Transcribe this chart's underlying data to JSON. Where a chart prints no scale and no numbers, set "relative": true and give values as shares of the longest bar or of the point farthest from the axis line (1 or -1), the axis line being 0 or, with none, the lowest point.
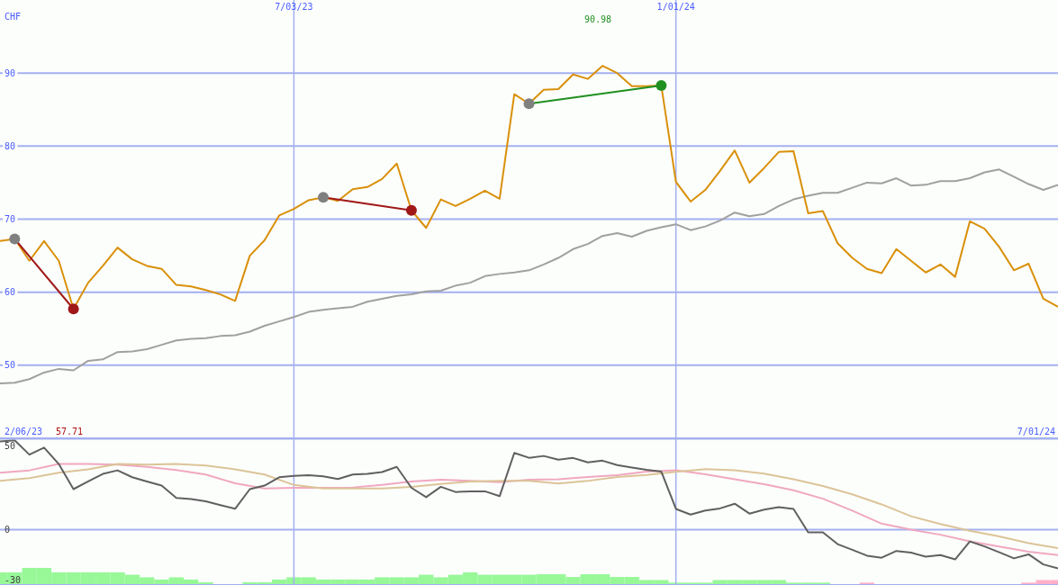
{
  "chart_data": [
    {
      "type": "line",
      "ylabel": "CHF",
      "xlim": [
        "2023-02-13",
        "2024-07-01"
      ],
      "ylim": [
        40,
        100
      ],
      "yticks": [
        50,
        60,
        70,
        80,
        90
      ],
      "xticks": [
        {
          "value": "2023-07-03",
          "label": "7/03/23"
        },
        {
          "value": "2024-01-01",
          "label": "1/01/24"
        }
      ],
      "grid": true,
      "x": [
        "2023-02-13",
        "2023-02-20",
        "2023-02-27",
        "2023-03-06",
        "2023-03-13",
        "2023-03-20",
        "2023-03-27",
        "2023-04-03",
        "2023-04-10",
        "2023-04-17",
        "2023-04-24",
        "2023-05-01",
        "2023-05-08",
        "2023-05-15",
        "2023-05-22",
        "2023-05-29",
        "2023-06-05",
        "2023-06-12",
        "2023-06-19",
        "2023-06-26",
        "2023-07-03",
        "2023-07-10",
        "2023-07-17",
        "2023-07-24",
        "2023-07-31",
        "2023-08-07",
        "2023-08-14",
        "2023-08-21",
        "2023-08-28",
        "2023-09-04",
        "2023-09-11",
        "2023-09-18",
        "2023-09-25",
        "2023-10-02",
        "2023-10-09",
        "2023-10-16",
        "2023-10-23",
        "2023-10-30",
        "2023-11-06",
        "2023-11-13",
        "2023-11-20",
        "2023-11-27",
        "2023-12-04",
        "2023-12-11",
        "2023-12-18",
        "2023-12-25",
        "2024-01-01",
        "2024-01-08",
        "2024-01-15",
        "2024-01-22",
        "2024-01-29",
        "2024-02-05",
        "2024-02-12",
        "2024-02-19",
        "2024-02-26",
        "2024-03-04",
        "2024-03-11",
        "2024-03-18",
        "2024-03-25",
        "2024-04-01",
        "2024-04-08",
        "2024-04-15",
        "2024-04-22",
        "2024-04-29",
        "2024-05-06",
        "2024-05-13",
        "2024-05-20",
        "2024-05-27",
        "2024-06-03",
        "2024-06-10",
        "2024-06-17",
        "2024-06-24",
        "2024-07-01"
      ],
      "series": [
        {
          "color": "#a0a0a0",
          "values": [
            47.5,
            47.6,
            48.1,
            49.0,
            49.5,
            49.3,
            50.6,
            50.8,
            51.8,
            51.9,
            52.2,
            52.8,
            53.4,
            53.6,
            53.7,
            54.0,
            54.1,
            54.6,
            55.4,
            56.0,
            56.6,
            57.3,
            57.6,
            57.8,
            58.0,
            58.7,
            59.1,
            59.5,
            59.7,
            60.1,
            60.2,
            60.9,
            61.3,
            62.2,
            62.5,
            62.7,
            63.0,
            63.8,
            64.7,
            65.9,
            66.6,
            67.7,
            68.1,
            67.6,
            68.4,
            68.9,
            69.3,
            68.5,
            69.0,
            69.8,
            70.9,
            70.4,
            70.7,
            71.8,
            72.7,
            73.2,
            73.6,
            73.6,
            74.3,
            75.0,
            74.9,
            75.6,
            74.6,
            74.7,
            75.2,
            75.2,
            75.6,
            76.4,
            76.8,
            75.8,
            74.8,
            74.0,
            74.7
          ]
        },
        {
          "color": "#d9900a",
          "values": [
            67.0,
            67.3,
            64.3,
            67.0,
            64.3,
            57.71,
            61.3,
            63.6,
            66.1,
            64.5,
            63.6,
            63.2,
            61.0,
            60.8,
            60.3,
            59.7,
            58.8,
            65.0,
            67.1,
            70.5,
            71.4,
            72.6,
            73.0,
            72.5,
            74.1,
            74.4,
            75.5,
            77.6,
            71.2,
            68.8,
            72.7,
            71.8,
            72.8,
            73.9,
            72.8,
            87.1,
            85.8,
            87.7,
            87.8,
            89.8,
            89.2,
            90.98,
            90.0,
            88.2,
            88.2,
            88.3,
            75.1,
            72.4,
            74.0,
            76.6,
            79.4,
            75.0,
            77.0,
            79.2,
            79.3,
            70.8,
            71.1,
            66.7,
            64.7,
            63.2,
            62.6,
            65.9,
            64.3,
            62.7,
            63.8,
            62.1,
            69.7,
            68.7,
            66.2,
            63.0,
            63.9,
            59.1,
            58.0
          ]
        },
        {
          "color": "#a01818",
          "marker": "circle",
          "colors": [
            "#808080",
            "#a01818"
          ],
          "x": [
            "2023-02-20",
            "2023-03-20"
          ],
          "values": [
            67.3,
            57.71
          ]
        },
        {
          "color": "#a01818",
          "marker": "circle",
          "colors": [
            "#808080",
            "#a01818"
          ],
          "x": [
            "2023-07-17",
            "2023-08-28"
          ],
          "values": [
            73.0,
            71.2
          ]
        },
        {
          "color": "#209020",
          "marker": "circle",
          "colors": [
            "#808080",
            "#209020"
          ],
          "x": [
            "2023-10-23",
            "2023-12-25"
          ],
          "values": [
            85.8,
            88.3
          ]
        }
      ],
      "annotations": [
        "2/06/23",
        "57.71",
        "90.98",
        "7/01/24"
      ]
    },
    {
      "type": "line",
      "xlim": [
        "2023-02-13",
        "2024-07-01"
      ],
      "ylim": [
        -33,
        54
      ],
      "yticks": [
        50,
        0,
        -30
      ],
      "xticks": [
        {
          "value": "2023-07-03",
          "label": null
        },
        {
          "value": "2024-01-01",
          "label": null
        }
      ],
      "grid": "x",
      "tick_labels": "y",
      "ref_lines": [
        {
          "axis": "y",
          "value": 0
        }
      ],
      "x": [
        "2023-02-13",
        "2023-02-20",
        "2023-02-27",
        "2023-03-06",
        "2023-03-13",
        "2023-03-20",
        "2023-03-27",
        "2023-04-03",
        "2023-04-10",
        "2023-04-17",
        "2023-04-24",
        "2023-05-01",
        "2023-05-08",
        "2023-05-15",
        "2023-05-22",
        "2023-05-29",
        "2023-06-05",
        "2023-06-12",
        "2023-06-19",
        "2023-06-26",
        "2023-07-03",
        "2023-07-10",
        "2023-07-17",
        "2023-07-24",
        "2023-07-31",
        "2023-08-07",
        "2023-08-14",
        "2023-08-21",
        "2023-08-28",
        "2023-09-04",
        "2023-09-11",
        "2023-09-18",
        "2023-09-25",
        "2023-10-02",
        "2023-10-09",
        "2023-10-16",
        "2023-10-23",
        "2023-10-30",
        "2023-11-06",
        "2023-11-13",
        "2023-11-20",
        "2023-11-27",
        "2023-12-04",
        "2023-12-11",
        "2023-12-18",
        "2023-12-25",
        "2024-01-01",
        "2024-01-08",
        "2024-01-15",
        "2024-01-22",
        "2024-01-29",
        "2024-02-05",
        "2024-02-12",
        "2024-02-19",
        "2024-02-26",
        "2024-03-04",
        "2024-03-11",
        "2024-03-18",
        "2024-03-25",
        "2024-04-01",
        "2024-04-08",
        "2024-04-15",
        "2024-04-22",
        "2024-04-29",
        "2024-05-06",
        "2024-05-13",
        "2024-05-20",
        "2024-05-27",
        "2024-06-03",
        "2024-06-10",
        "2024-06-17",
        "2024-06-24",
        "2024-07-01"
      ],
      "series": [
        {
          "color": "#f0a8c0",
          "x": [
            "2023-02-13",
            "2023-02-27",
            "2023-03-13",
            "2023-03-27",
            "2023-04-10",
            "2023-04-24",
            "2023-05-08",
            "2023-05-22",
            "2023-06-05",
            "2023-06-19",
            "2023-07-03",
            "2023-07-17",
            "2023-07-31",
            "2023-08-14",
            "2023-08-28",
            "2023-09-11",
            "2023-09-25",
            "2023-10-09",
            "2023-10-23",
            "2023-11-06",
            "2023-11-20",
            "2023-12-04",
            "2023-12-18",
            "2024-01-01",
            "2024-01-15",
            "2024-01-29",
            "2024-02-12",
            "2024-02-26",
            "2024-03-11",
            "2024-03-25",
            "2024-04-08",
            "2024-04-22",
            "2024-05-06",
            "2024-05-20",
            "2024-06-03",
            "2024-06-17",
            "2024-07-01"
          ],
          "values": [
            34.0,
            35.4,
            39.2,
            39.2,
            38.8,
            37.5,
            35.6,
            32.9,
            27.7,
            24.6,
            25.0,
            25.0,
            25.2,
            26.7,
            28.8,
            29.8,
            29.2,
            28.3,
            29.8,
            30.1,
            31.5,
            32.5,
            34.7,
            35.5,
            33.1,
            30.1,
            27.1,
            23.5,
            18.5,
            11.4,
            3.6,
            0,
            -3.0,
            -7.0,
            -10.0,
            -13.1,
            -15.1
          ]
        },
        {
          "color": "#dcc498",
          "x": [
            "2023-02-13",
            "2023-02-27",
            "2023-03-13",
            "2023-03-27",
            "2023-04-10",
            "2023-04-24",
            "2023-05-08",
            "2023-05-22",
            "2023-06-05",
            "2023-06-19",
            "2023-07-03",
            "2023-07-17",
            "2023-07-31",
            "2023-08-14",
            "2023-08-28",
            "2023-09-11",
            "2023-09-25",
            "2023-10-09",
            "2023-10-23",
            "2023-11-06",
            "2023-11-20",
            "2023-12-04",
            "2023-12-18",
            "2024-01-01",
            "2024-01-15",
            "2024-01-29",
            "2024-02-12",
            "2024-02-26",
            "2024-03-11",
            "2024-03-25",
            "2024-04-08",
            "2024-04-22",
            "2024-05-06",
            "2024-05-20",
            "2024-06-03",
            "2024-06-17",
            "2024-07-01"
          ],
          "values": [
            29.2,
            30.8,
            34.0,
            36.0,
            39.2,
            38.8,
            39.2,
            38.3,
            36.0,
            32.9,
            26.7,
            24.6,
            24.6,
            24.6,
            25.6,
            27.3,
            28.8,
            29.2,
            29.2,
            27.5,
            29.1,
            31.5,
            32.7,
            34.5,
            36.1,
            35.5,
            33.5,
            30.1,
            26.1,
            21.1,
            15.1,
            8.0,
            3.4,
            -0.6,
            -4.0,
            -8.0,
            -11.0
          ]
        },
        {
          "color": "#606060",
          "values": [
            52.7,
            53.3,
            44.8,
            49.0,
            39.2,
            24.2,
            28.8,
            33.3,
            35.4,
            31.3,
            28.8,
            26.3,
            19.0,
            18.3,
            16.9,
            14.7,
            12.5,
            24.2,
            26.3,
            31.3,
            32.1,
            32.5,
            31.9,
            30.2,
            32.9,
            33.3,
            34.4,
            37.5,
            25.0,
            19.4,
            25.6,
            22.5,
            22.9,
            22.9,
            20.0,
            45.8,
            42.9,
            44.0,
            41.8,
            42.8,
            40.2,
            41.2,
            38.6,
            37.1,
            35.7,
            34.7,
            12.4,
            9.0,
            11.4,
            12.7,
            15.5,
            9.6,
            12.0,
            13.5,
            12.4,
            -1.6,
            -1.6,
            -8.6,
            -12.0,
            -15.5,
            -16.7,
            -12.7,
            -13.7,
            -16.1,
            -15.1,
            -17.7,
            -7.0,
            -10.0,
            -13.5,
            -17.1,
            -14.7,
            -20.7,
            -23.1
          ]
        }
      ]
    },
    {
      "type": "bar",
      "relative": true,
      "tick_labels": false,
      "xlim": [
        "2023-02-13",
        "2024-07-01"
      ],
      "x": [
        "2023-02-13",
        "2023-02-20",
        "2023-02-27",
        "2023-03-06",
        "2023-03-13",
        "2023-03-20",
        "2023-03-27",
        "2023-04-03",
        "2023-04-10",
        "2023-04-17",
        "2023-04-24",
        "2023-05-01",
        "2023-05-08",
        "2023-05-15",
        "2023-05-22",
        "2023-05-29",
        "2023-06-05",
        "2023-06-12",
        "2023-06-19",
        "2023-06-26",
        "2023-07-03",
        "2023-07-10",
        "2023-07-17",
        "2023-07-24",
        "2023-07-31",
        "2023-08-07",
        "2023-08-14",
        "2023-08-21",
        "2023-08-28",
        "2023-09-04",
        "2023-09-11",
        "2023-09-18",
        "2023-09-25",
        "2023-10-02",
        "2023-10-09",
        "2023-10-16",
        "2023-10-23",
        "2023-10-30",
        "2023-11-06",
        "2023-11-13",
        "2023-11-20",
        "2023-11-27",
        "2023-12-04",
        "2023-12-11",
        "2023-12-18",
        "2023-12-25",
        "2024-01-01",
        "2024-01-08",
        "2024-01-15",
        "2024-01-22",
        "2024-01-29",
        "2024-02-05",
        "2024-02-12",
        "2024-02-19",
        "2024-02-26",
        "2024-03-04",
        "2024-03-11",
        "2024-03-18",
        "2024-03-25",
        "2024-04-01",
        "2024-04-08",
        "2024-04-15",
        "2024-04-22",
        "2024-04-29",
        "2024-05-06",
        "2024-05-13",
        "2024-05-20",
        "2024-05-27",
        "2024-06-03",
        "2024-06-10",
        "2024-06-17",
        "2024-06-24",
        "2024-07-01"
      ],
      "values": [
        0.74,
        0.74,
        1,
        1,
        0.74,
        0.74,
        0.74,
        0.74,
        0.74,
        0.6,
        0.45,
        0.32,
        0.45,
        0.32,
        0.16,
        0,
        0,
        0.16,
        0.16,
        0.32,
        0.45,
        0.45,
        0.32,
        0.32,
        0.32,
        0.32,
        0.45,
        0.45,
        0.45,
        0.6,
        0.45,
        0.6,
        0.74,
        0.6,
        0.6,
        0.6,
        0.6,
        0.63,
        0.63,
        0.47,
        0.63,
        0.63,
        0.47,
        0.47,
        0.29,
        0.29,
        0.14,
        0.14,
        0.14,
        0.29,
        0.29,
        0.29,
        0.29,
        0.29,
        0.14,
        0.14,
        0.14,
        0,
        0,
        0.14,
        0,
        0,
        0,
        0,
        0,
        0,
        0,
        0,
        0,
        0,
        0.14,
        0.29,
        0.29
      ],
      "colors": [
        "#98f898",
        "#98f898",
        "#98f898",
        "#98f898",
        "#98f898",
        "#98f898",
        "#98f898",
        "#98f898",
        "#98f898",
        "#98f898",
        "#98f898",
        "#98f898",
        "#98f898",
        "#98f898",
        "#98f898",
        "#98f898",
        "#98f898",
        "#98f898",
        "#98f898",
        "#98f898",
        "#98f898",
        "#98f898",
        "#98f898",
        "#98f898",
        "#98f898",
        "#98f898",
        "#98f898",
        "#98f898",
        "#98f898",
        "#98f898",
        "#98f898",
        "#98f898",
        "#98f898",
        "#98f898",
        "#98f898",
        "#98f898",
        "#98f898",
        "#98f898",
        "#98f898",
        "#98f898",
        "#98f898",
        "#98f898",
        "#98f898",
        "#98f898",
        "#98f898",
        "#98f898",
        "#98f898",
        "#98f898",
        "#98f898",
        "#98f898",
        "#98f898",
        "#98f898",
        "#98f898",
        "#98f898",
        "#98f898",
        "#98f898",
        "#98f898",
        "#98f898",
        "#98f898",
        "#ffb0c8",
        "#98f898",
        "#98f898",
        "#98f898",
        "#98f898",
        "#98f898",
        "#98f898",
        "#98f898",
        "#98f898",
        "#98f898",
        "#98f898",
        "#ffb0c8",
        "#ffb0c8",
        "#ffb0c8"
      ]
    }
  ]
}
